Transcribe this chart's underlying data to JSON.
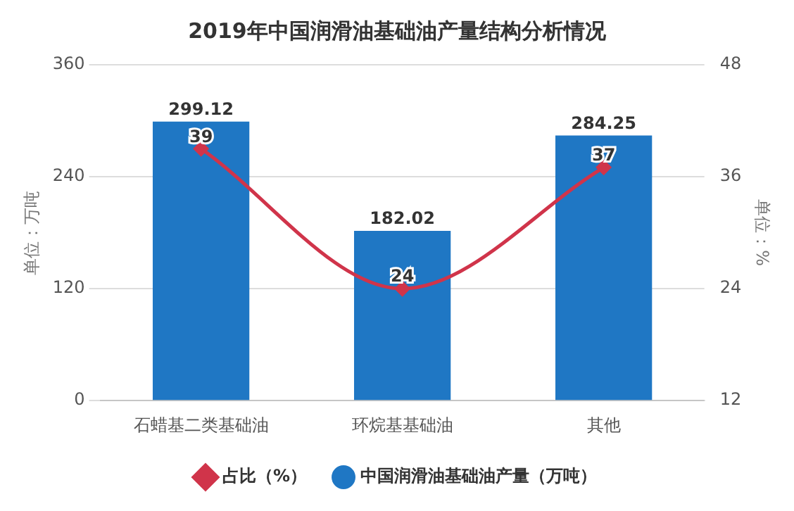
{
  "chart_data": {
    "type": "bar",
    "title": "2019年中国润滑油基础油产量结构分析情况",
    "ylabel": "单位：万吨",
    "y2label": "单位：%",
    "categories": [
      "石蜡基二类基础油",
      "环烷基基础油",
      "其他"
    ],
    "series": [
      {
        "name": "中国润滑油基础油产量（万吨）",
        "color": "#1f77c4",
        "values": [
          299.12,
          182.02,
          284.25
        ]
      },
      {
        "name": "占比（%）",
        "type": "line",
        "axis": "y2",
        "color": "#d0344a",
        "values": [
          39,
          24,
          37
        ]
      }
    ],
    "ylim": [
      0,
      360
    ],
    "yticks": [
      0,
      120,
      240,
      360
    ],
    "y2lim": [
      12,
      48
    ],
    "y2ticks": [
      12,
      24,
      36,
      48
    ],
    "grid": "y",
    "legend": "bottom",
    "data_labels": true,
    "marker": "diamond"
  }
}
